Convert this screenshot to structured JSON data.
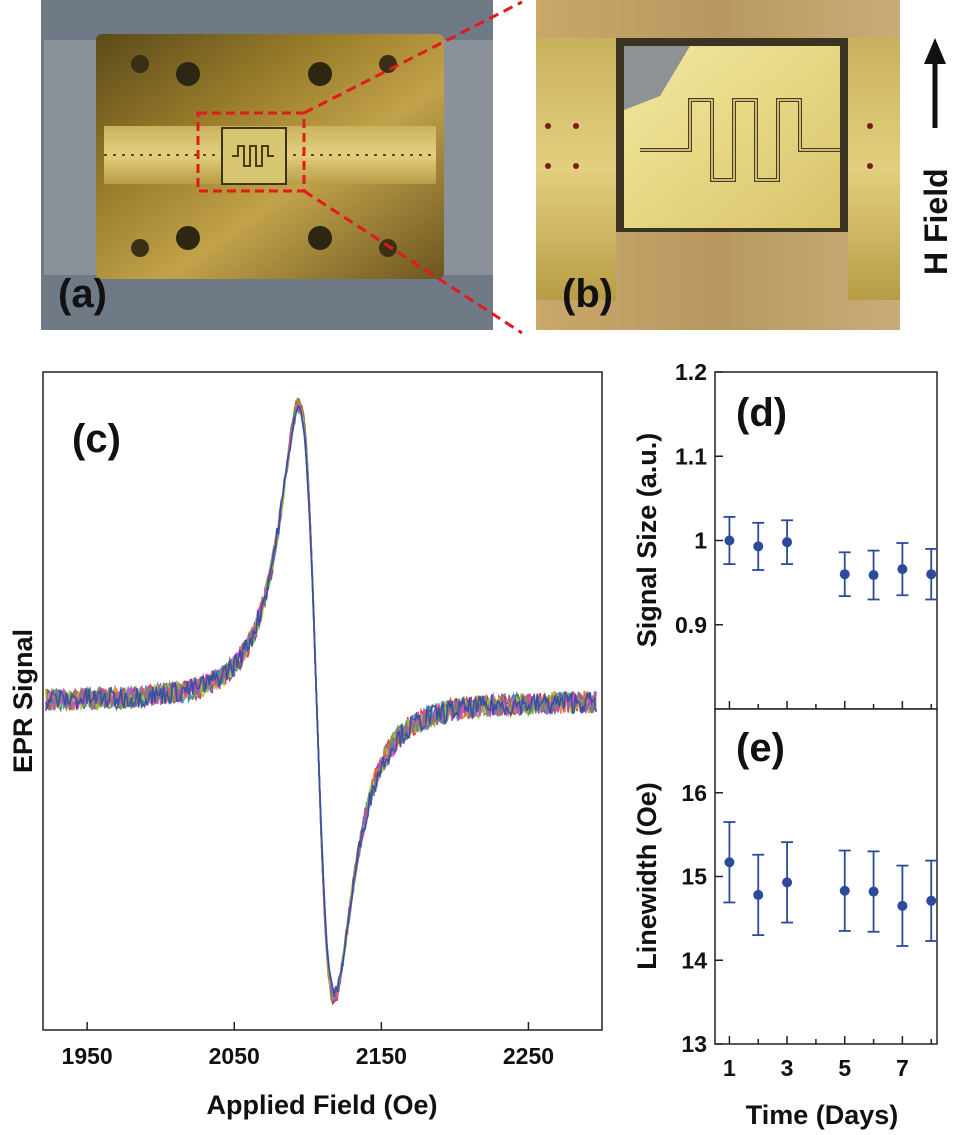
{
  "photos": {
    "a": {
      "label": "(a)"
    },
    "b": {
      "label": "(b)",
      "field_label": "H Field"
    }
  },
  "chart_data": [
    {
      "id": "c",
      "type": "line",
      "panel_label": "(c)",
      "xlabel": "Applied Field (Oe)",
      "ylabel": "EPR Signal",
      "xlim": [
        1920,
        2300
      ],
      "xticks": [
        1950,
        2050,
        2150,
        2250
      ],
      "ylim": [
        -1.1,
        1.1
      ],
      "yticks_visible": false,
      "curve_model": "derivative_lorentzian",
      "center_field": 2106,
      "peak_field": 2094,
      "trough_field": 2118,
      "n_traces": 9,
      "series_colors": [
        "#e8262b",
        "#3aaa35",
        "#7f3f98",
        "#2a8fd4",
        "#f07c22",
        "#9acd32",
        "#e43ec0",
        "#7a7a7a",
        "#2b4ca8"
      ]
    },
    {
      "id": "d",
      "type": "scatter",
      "panel_label": "(d)",
      "ylabel": "Signal Size (a.u.)",
      "ylim": [
        0.8,
        1.2
      ],
      "yticks": [
        0.9,
        1.0,
        1.1,
        1.2
      ],
      "ytick_labels": [
        "0.9",
        "1",
        "1.1",
        "1.2"
      ],
      "xlim": [
        0.5,
        8.2
      ],
      "x": [
        1,
        2,
        3,
        5,
        6,
        7,
        8
      ],
      "y": [
        1.0,
        0.993,
        0.998,
        0.96,
        0.959,
        0.966,
        0.96
      ],
      "yerr": [
        0.028,
        0.028,
        0.026,
        0.026,
        0.029,
        0.031,
        0.03
      ],
      "color": "#2b4a9b"
    },
    {
      "id": "e",
      "type": "scatter",
      "panel_label": "(e)",
      "ylabel": "Linewidth (Oe)",
      "xlabel": "Time (Days)",
      "ylim": [
        13,
        17
      ],
      "yticks": [
        13,
        14,
        15,
        16
      ],
      "ytick_labels": [
        "13",
        "14",
        "15",
        "16"
      ],
      "xlim": [
        0.5,
        8.2
      ],
      "xticks": [
        1,
        3,
        5,
        7
      ],
      "x": [
        1,
        2,
        3,
        5,
        6,
        7,
        8
      ],
      "y": [
        15.17,
        14.78,
        14.93,
        14.83,
        14.82,
        14.65,
        14.71
      ],
      "yerr": [
        0.48,
        0.48,
        0.48,
        0.48,
        0.48,
        0.48,
        0.48
      ],
      "color": "#2b4a9b"
    }
  ]
}
